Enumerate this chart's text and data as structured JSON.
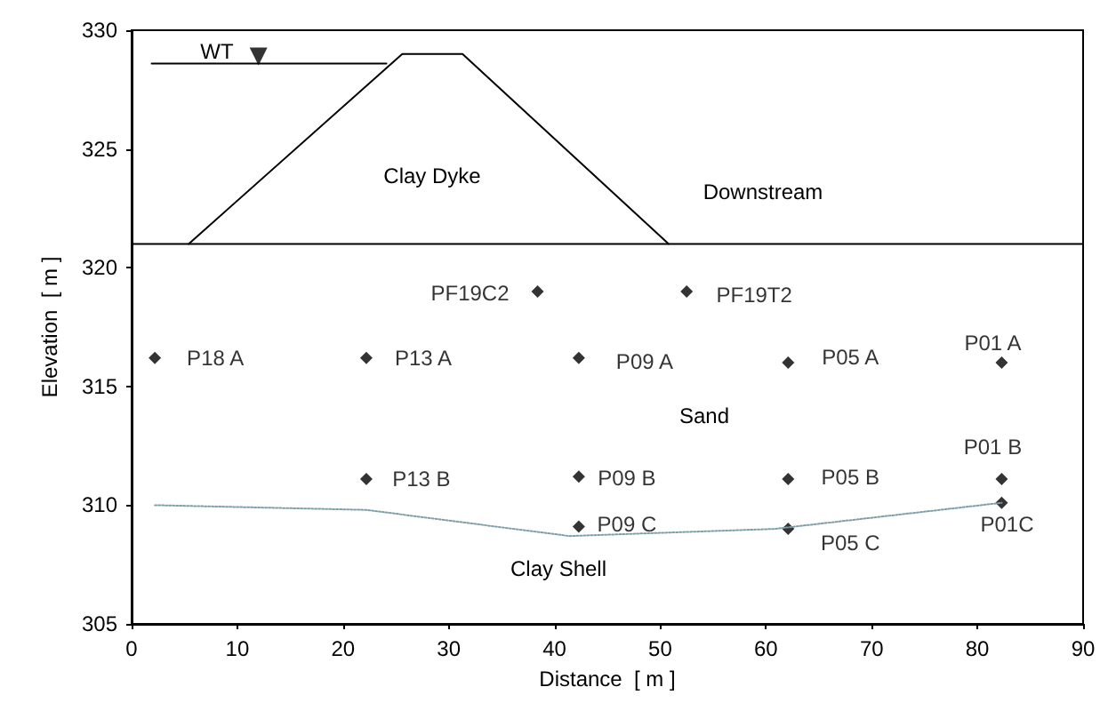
{
  "chart_data": {
    "type": "scatter",
    "xlabel": "Distance  [ m ]",
    "ylabel": "Elevation  [ m ]",
    "xlim": [
      0,
      90
    ],
    "xticks": [
      0,
      10,
      20,
      30,
      40,
      50,
      60,
      70,
      80,
      90
    ],
    "ylim": [
      305,
      330
    ],
    "yticks": [
      305,
      310,
      315,
      320,
      325,
      330
    ],
    "grid": false,
    "series": [
      {
        "type": "line",
        "color": "#000000",
        "marker": "none",
        "line_style": "solid",
        "x": [
          0,
          90
        ],
        "values": [
          321,
          321
        ]
      },
      {
        "type": "line",
        "color": "#000000",
        "marker": "none",
        "line_style": "solid",
        "x": [
          5.4,
          25.6,
          31.3,
          50.8
        ],
        "values": [
          321,
          329,
          329,
          321
        ]
      },
      {
        "type": "line",
        "color": "#000000",
        "marker": "none",
        "line_style": "solid",
        "x": [
          1.9,
          24.1
        ],
        "values": [
          328.6,
          328.6
        ]
      },
      {
        "type": "scatter",
        "color": "#000000",
        "marker": "triangle",
        "x": [
          12
        ],
        "values": [
          328.9
        ]
      },
      {
        "type": "line",
        "color": "#7f9fa8",
        "marker": "none",
        "line_style": "dotted",
        "x": [
          2.2,
          22.2,
          41.4,
          60.8,
          82.3
        ],
        "values": [
          310,
          309.8,
          308.7,
          309,
          310.1
        ]
      },
      {
        "color": "#000000",
        "marker": "diamond",
        "x": [
          2.2,
          22.2,
          42.3,
          62.1,
          82.3,
          38.4,
          52.5,
          22.2,
          42.3,
          62.1,
          82.3,
          42.3,
          62.1,
          82.3
        ],
        "values": [
          316.2,
          316.2,
          316.2,
          316,
          316,
          319,
          319,
          311.1,
          311.2,
          311.1,
          311.1,
          309.1,
          309,
          310.1
        ],
        "value_labels": [
          "P18 A",
          "P13 A",
          "P09 A",
          "P05 A",
          "P01 A",
          "PF19C2",
          "PF19T2",
          "P13 B",
          "P09 B",
          "P05 B",
          "P01 B",
          "P09 C",
          "P05 C",
          "P01C"
        ]
      }
    ],
    "annotations": [
      "WT",
      "Clay Dyke",
      "Downstream",
      "Sand",
      "Clay Shell"
    ]
  }
}
